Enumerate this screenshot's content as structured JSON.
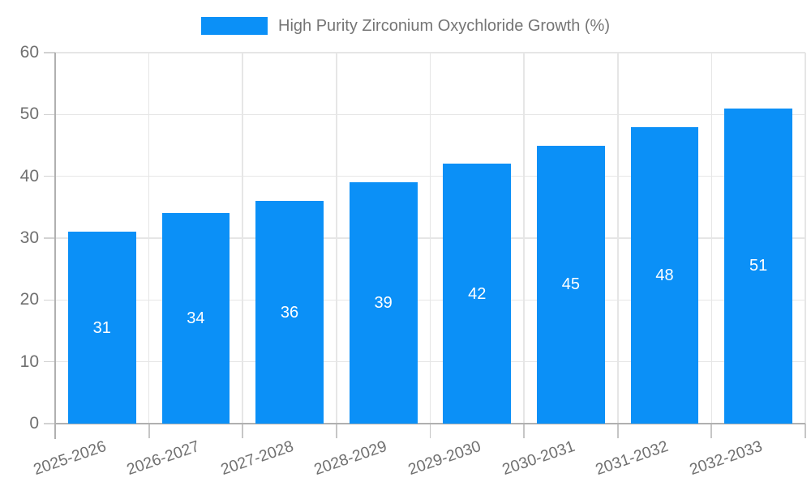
{
  "legend": {
    "label": "High Purity Zirconium Oxychloride Growth (%)"
  },
  "chart_data": {
    "type": "bar",
    "title": "High Purity Zirconium Oxychloride Growth (%)",
    "categories": [
      "2025-2026",
      "2026-2027",
      "2027-2028",
      "2028-2029",
      "2029-2030",
      "2030-2031",
      "2031-2032",
      "2032-2033"
    ],
    "values": [
      31,
      34,
      36,
      39,
      42,
      45,
      48,
      51
    ],
    "xlabel": "",
    "ylabel": "",
    "ylim": [
      0,
      60
    ],
    "ytick_step": 10,
    "grid": true,
    "legend_position": "top",
    "bar_color": "#0b90f7",
    "value_label_color": "#ffffff",
    "value_label_position": "center-inside"
  },
  "colors": {
    "bar": "#0b90f7",
    "grid": "#e6e6e6",
    "axis": "#b0b0b0",
    "tick_text": "#707070",
    "legend_text": "#757575",
    "value_text": "#ffffff",
    "background": "#ffffff"
  }
}
